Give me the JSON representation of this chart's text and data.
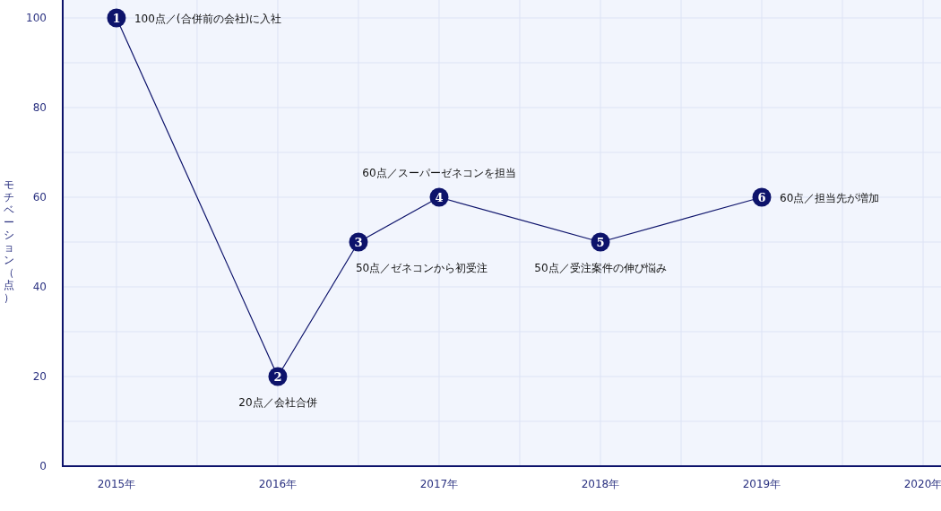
{
  "chart_data": {
    "type": "line",
    "ylabel": "モチベーション（点）",
    "x": [
      2015,
      2016,
      2016.5,
      2017,
      2018,
      2019
    ],
    "series": [
      {
        "color": "#0d136b",
        "values": [
          100,
          20,
          50,
          60,
          50,
          60
        ]
      }
    ],
    "marker": "circle",
    "line_style": "solid",
    "grid": true,
    "xlim": [
      2014.667,
      2020.111
    ],
    "ylim": [
      0,
      104
    ],
    "xticks": [
      {
        "value": 2015,
        "label": "2015年"
      },
      {
        "value": 2015.5,
        "label": null
      },
      {
        "value": 2016,
        "label": "2016年"
      },
      {
        "value": 2016.5,
        "label": null
      },
      {
        "value": 2017,
        "label": "2017年"
      },
      {
        "value": 2017.5,
        "label": null
      },
      {
        "value": 2018,
        "label": "2018年"
      },
      {
        "value": 2018.5,
        "label": null
      },
      {
        "value": 2019,
        "label": "2019年"
      },
      {
        "value": 2019.5,
        "label": null
      },
      {
        "value": 2020,
        "label": "2020年"
      }
    ],
    "yticks": [
      0,
      {
        "value": 10,
        "label": null
      },
      20,
      {
        "value": 30,
        "label": null
      },
      40,
      {
        "value": 50,
        "label": null
      },
      60,
      {
        "value": 70,
        "label": null
      },
      80,
      {
        "value": 90,
        "label": null
      },
      100
    ],
    "annotations": [
      {
        "text": "1",
        "x": 2015,
        "y": 100
      },
      {
        "text": "100点／(合併前の会社)に入社",
        "x": 2015,
        "y": 100
      },
      {
        "text": "2",
        "x": 2016,
        "y": 20
      },
      {
        "text": "20点／会社合併",
        "x": 2016,
        "y": 20
      },
      {
        "text": "3",
        "x": 2016.5,
        "y": 50
      },
      {
        "text": "50点／ゼネコンから初受注",
        "x": 2016.5,
        "y": 50
      },
      {
        "text": "4",
        "x": 2017,
        "y": 60
      },
      {
        "text": "60点／スーパーゼネコンを担当",
        "x": 2017,
        "y": 60
      },
      {
        "text": "5",
        "x": 2018,
        "y": 50
      },
      {
        "text": "50点／受注案件の伸び悩み",
        "x": 2018,
        "y": 50
      },
      {
        "text": "6",
        "x": 2019,
        "y": 60
      },
      {
        "text": "60点／担当先が増加",
        "x": 2019,
        "y": 60
      }
    ]
  }
}
